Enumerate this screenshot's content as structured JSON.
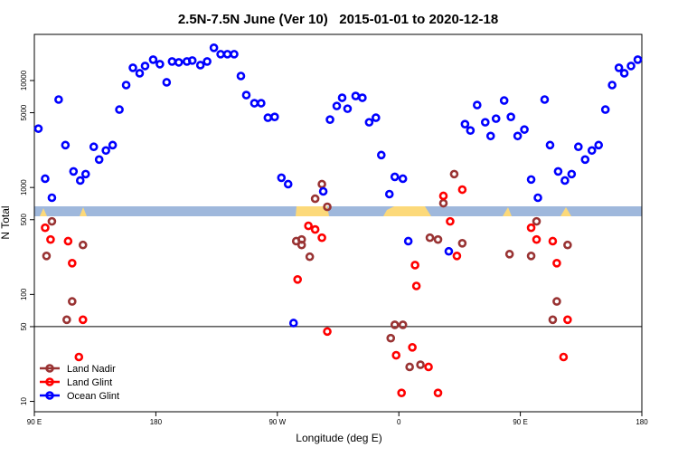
{
  "chart_data": {
    "type": "scatter",
    "title": "2.5N-7.5N June (Ver 10)   2015-01-01 to 2020-12-18",
    "x_label": "Longitude (deg E)",
    "y_label": "N Total",
    "log_y": true,
    "xlim": [
      90,
      540
    ],
    "ylim": [
      8,
      27000
    ],
    "xticks": [
      {
        "value": 90,
        "label": "90 E"
      },
      180,
      {
        "value": 270,
        "label": "90 W"
      },
      {
        "value": 360,
        "label": "0"
      },
      {
        "value": 450,
        "label": "90 E"
      },
      {
        "value": 540,
        "label": "180"
      }
    ],
    "yticks": [
      10,
      50,
      100,
      500,
      1000,
      5000,
      10000
    ],
    "reference_line": 50,
    "legend": "bottom-left",
    "series": [
      {
        "name": "Land Nadir",
        "color": "#993333",
        "x": [
          99,
          103,
          114,
          118,
          126,
          284,
          288,
          288,
          294,
          298,
          303,
          307,
          354,
          357,
          363,
          368,
          376,
          383,
          389,
          393,
          401,
          407,
          442,
          458,
          462,
          474,
          477,
          485
        ],
        "values": [
          229,
          482,
          58,
          86,
          290,
          315,
          290,
          326,
          225,
          785,
          1075,
          659,
          39,
          52,
          52,
          21,
          22,
          339,
          326,
          713,
          1334,
          301,
          238,
          229,
          482,
          58,
          86,
          290
        ]
      },
      {
        "name": "Land Glint",
        "color": "#ff0000",
        "x": [
          98,
          102,
          115,
          118,
          126,
          123,
          285,
          293,
          298,
          303,
          307,
          358,
          362,
          370,
          372,
          373,
          382,
          389,
          393,
          398,
          403,
          407,
          458,
          462,
          474,
          477,
          485,
          482
        ],
        "values": [
          420,
          326,
          315,
          196,
          58,
          26,
          138,
          438,
          405,
          339,
          45,
          27,
          12,
          32,
          188,
          120,
          21,
          12,
          834,
          482,
          229,
          955,
          420,
          326,
          315,
          196,
          58,
          26
        ]
      },
      {
        "name": "Ocean Glint",
        "color": "#0000ff",
        "x": [
          93,
          98,
          103,
          108,
          113,
          119,
          124,
          128,
          134,
          138,
          143,
          148,
          153,
          158,
          163,
          168,
          172,
          178,
          183,
          188,
          192,
          197,
          203,
          207,
          213,
          218,
          223,
          228,
          233,
          238,
          243,
          247,
          253,
          258,
          263,
          268,
          273,
          278,
          282,
          304,
          309,
          314,
          318,
          322,
          328,
          333,
          338,
          343,
          347,
          353,
          357,
          363,
          367,
          397,
          409,
          413,
          418,
          424,
          428,
          432,
          438,
          443,
          448,
          453,
          458,
          463,
          468,
          472,
          478,
          483,
          488,
          493,
          498,
          503,
          508,
          513,
          518,
          523,
          527,
          532,
          537
        ],
        "values": [
          3550,
          1208,
          802,
          6640,
          2490,
          1413,
          1162,
          1334,
          2400,
          1824,
          2218,
          2490,
          5350,
          9070,
          13150,
          11690,
          13680,
          15670,
          14220,
          9620,
          15070,
          14790,
          15070,
          15380,
          13930,
          15070,
          20230,
          17630,
          17630,
          17630,
          11020,
          7310,
          6140,
          6140,
          4490,
          4570,
          1233,
          1075,
          54,
          919,
          4310,
          5780,
          6900,
          5450,
          7170,
          6900,
          4070,
          4490,
          2010,
          867,
          1257,
          1208,
          315,
          253,
          3910,
          3410,
          5900,
          4070,
          3030,
          4400,
          6500,
          4570,
          3030,
          3480,
          1187,
          802,
          6640,
          2490,
          1413,
          1162,
          1334,
          2400,
          1824,
          2218,
          2490,
          5350,
          9070,
          13150,
          11690,
          13680,
          15670
        ]
      }
    ]
  }
}
